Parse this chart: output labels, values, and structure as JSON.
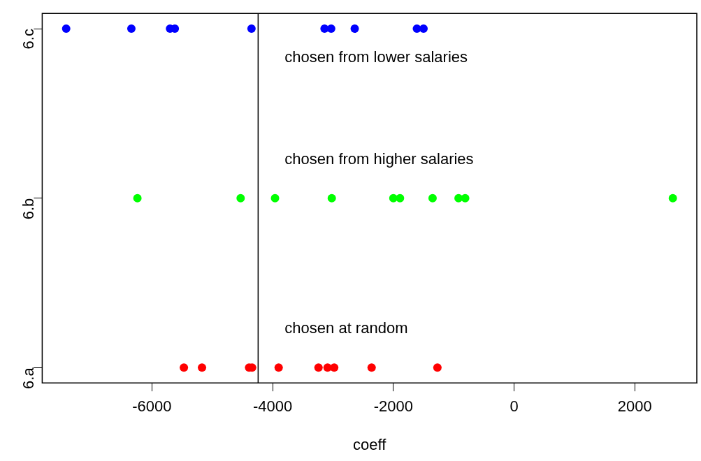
{
  "chart_data": {
    "type": "scatter",
    "orientation": "horizontal",
    "xlabel": "coeff",
    "categories": [
      "6.c",
      "6.b",
      "6.a"
    ],
    "xlim": [
      -7817,
      3027
    ],
    "xticks": [
      -6000,
      -4000,
      -2000,
      0,
      2000
    ],
    "series": [
      {
        "color": "#ff0000",
        "x": [
          "6.a",
          "6.a",
          "6.a",
          "6.a",
          "6.a",
          "6.a",
          "6.a",
          "6.a",
          "6.a",
          "6.a"
        ],
        "values": [
          -5470,
          -5170,
          -4390,
          -4340,
          -3900,
          -3240,
          -3090,
          -2980,
          -2360,
          -1270
        ]
      },
      {
        "color": "#00ff00",
        "x": [
          "6.b",
          "6.b",
          "6.b",
          "6.b",
          "6.b",
          "6.b",
          "6.b",
          "6.b",
          "6.b",
          "6.b"
        ],
        "values": [
          -6240,
          -4530,
          -3960,
          -3020,
          -2000,
          -1890,
          -1350,
          -920,
          -810,
          2630
        ]
      },
      {
        "color": "#0000ff",
        "x": [
          "6.c",
          "6.c",
          "6.c",
          "6.c",
          "6.c",
          "6.c",
          "6.c",
          "6.c",
          "6.c",
          "6.c"
        ],
        "values": [
          -7420,
          -6340,
          -5700,
          -5620,
          -4350,
          -3140,
          -3030,
          -2640,
          -1610,
          -1500
        ]
      }
    ],
    "ref_lines": [
      {
        "axis": "x",
        "value": -4240,
        "color": "#000000"
      }
    ],
    "annotations": [
      "chosen from lower salaries",
      "chosen from higher salaries",
      "chosen at random"
    ],
    "marker": "circle",
    "grid": false,
    "legend": false
  }
}
